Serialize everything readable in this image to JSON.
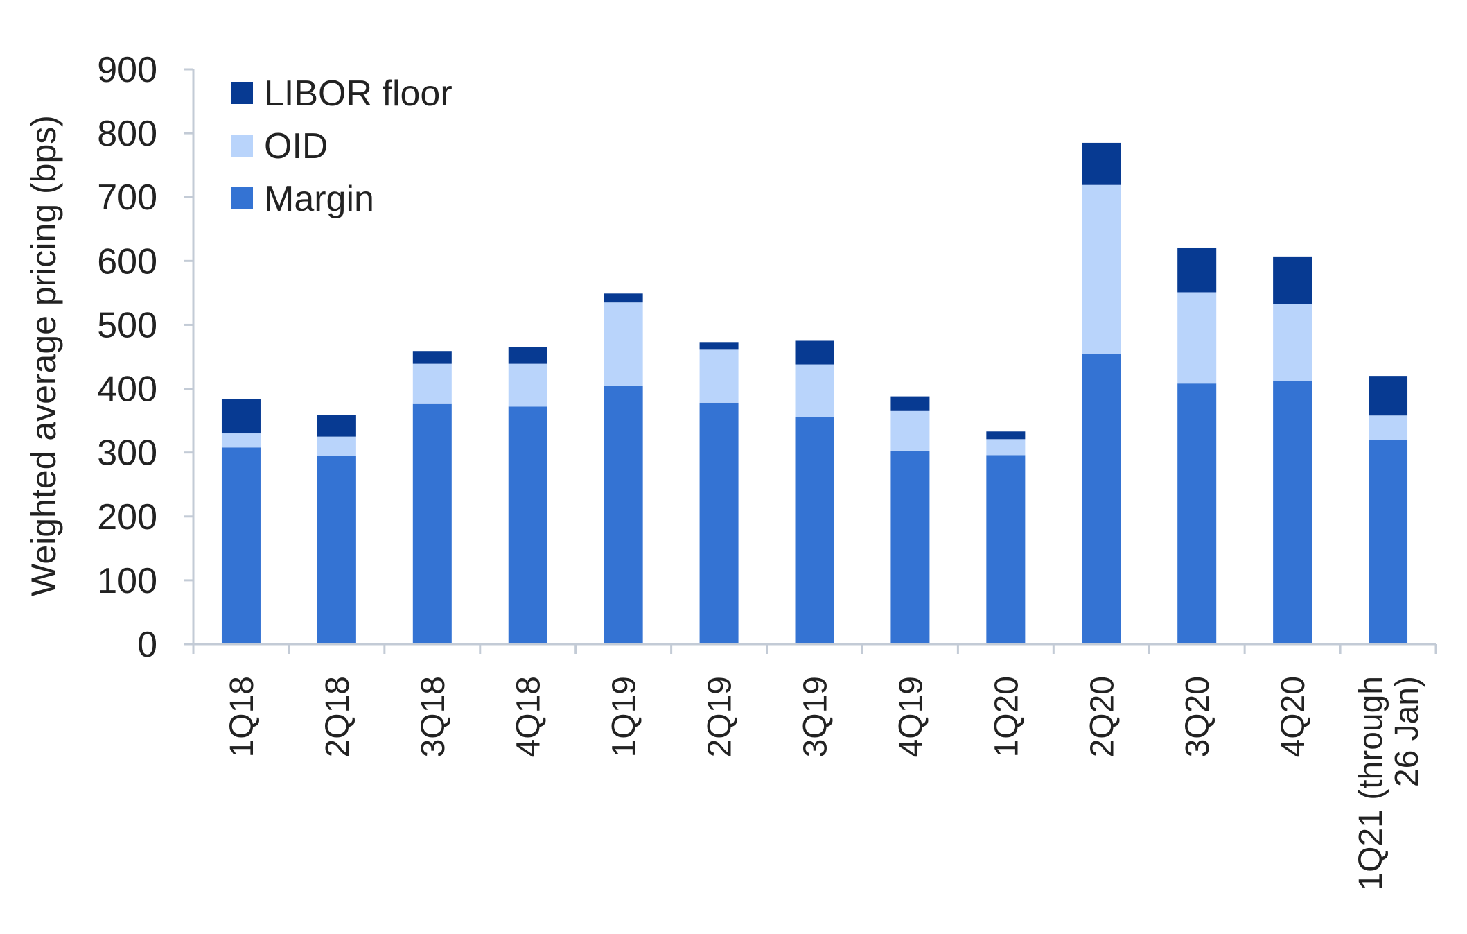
{
  "chart_data": {
    "type": "bar",
    "stacked": true,
    "title": "",
    "xlabel": "",
    "ylabel": "Weighted average pricing (bps)",
    "ylim": [
      0,
      900
    ],
    "yticks": [
      0,
      100,
      200,
      300,
      400,
      500,
      600,
      700,
      800,
      900
    ],
    "grid": false,
    "legend_position": "top-left",
    "categories": [
      [
        "1Q18"
      ],
      [
        "2Q18"
      ],
      [
        "3Q18"
      ],
      [
        "4Q18"
      ],
      [
        "1Q19"
      ],
      [
        "2Q19"
      ],
      [
        "3Q19"
      ],
      [
        "4Q19"
      ],
      [
        "1Q20"
      ],
      [
        "2Q20"
      ],
      [
        "3Q20"
      ],
      [
        "4Q20"
      ],
      [
        "1Q21 (through",
        "26 Jan)"
      ]
    ],
    "series": [
      {
        "name": "Margin",
        "color": "#3473D3",
        "values": [
          308,
          295,
          377,
          372,
          405,
          378,
          356,
          303,
          296,
          454,
          408,
          412,
          320
        ]
      },
      {
        "name": "OID",
        "color": "#B9D4FB",
        "values": [
          22,
          30,
          62,
          67,
          130,
          83,
          82,
          62,
          25,
          265,
          143,
          120,
          38
        ]
      },
      {
        "name": "LIBOR floor",
        "color": "#073A92",
        "values": [
          54,
          34,
          20,
          26,
          14,
          12,
          37,
          23,
          12,
          66,
          70,
          75,
          62
        ]
      }
    ],
    "legend_order": [
      "LIBOR floor",
      "OID",
      "Margin"
    ]
  }
}
